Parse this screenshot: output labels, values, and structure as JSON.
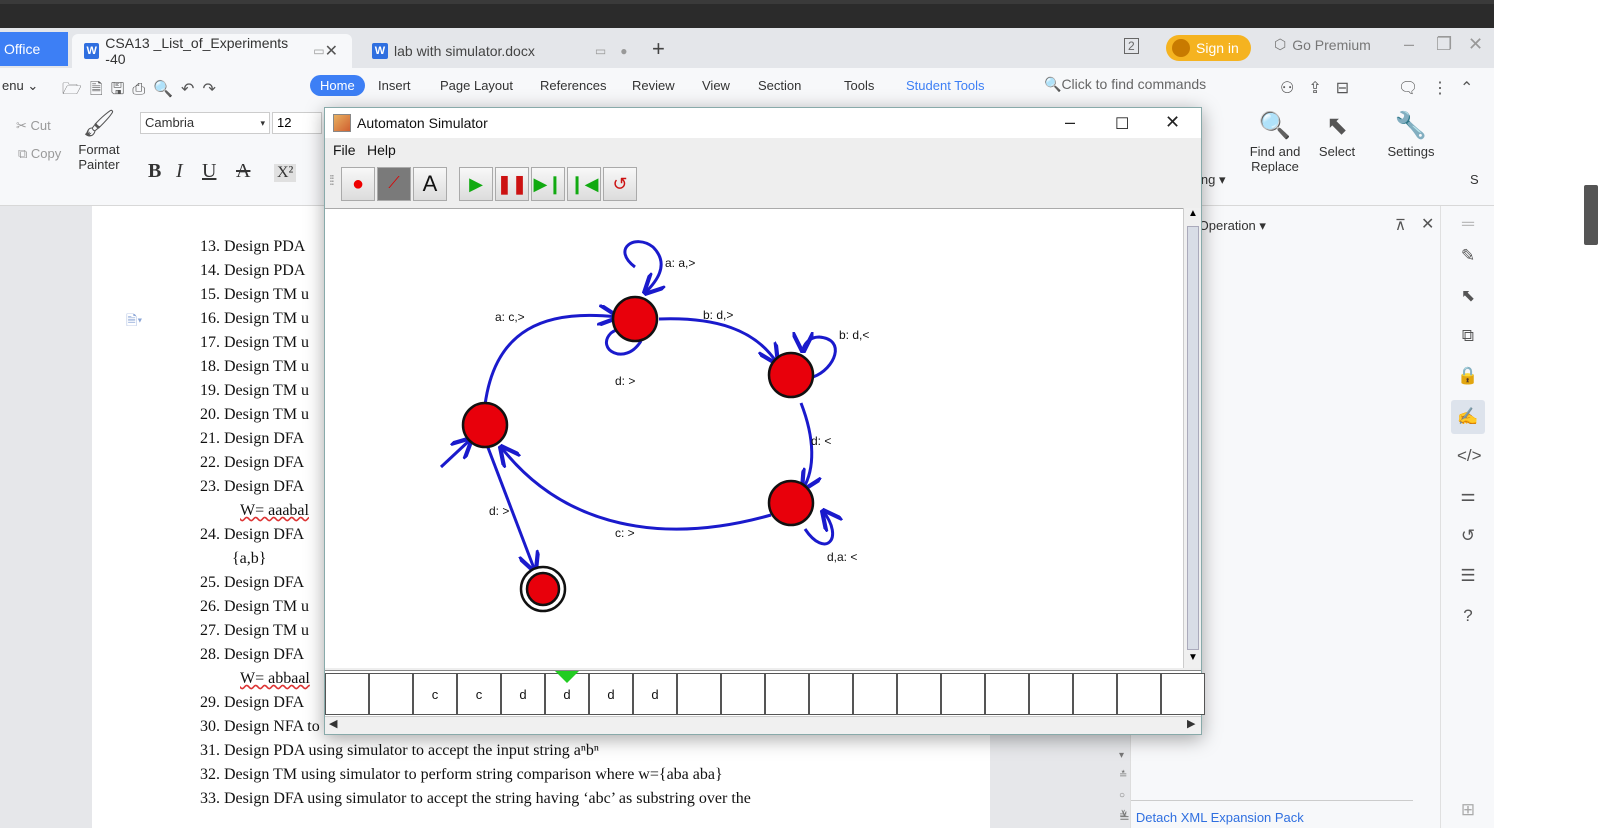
{
  "wps": {
    "tabs": {
      "office_label": "Office",
      "doc1_title": "CSA13 _List_of_Experiments -40",
      "doc2_title": "lab with simulator.docx",
      "new_tab": "+"
    },
    "topbar": {
      "window_count": "2",
      "sign_in": "Sign in",
      "go_premium": "Go Premium"
    },
    "menu": {
      "menu_label": "enu",
      "items": [
        "Home",
        "Insert",
        "Page Layout",
        "References",
        "Review",
        "View",
        "Section",
        "Tools"
      ],
      "student_tools": "Student Tools",
      "find_placeholder": "Click to find commands"
    },
    "ribbon": {
      "cut": "Cut",
      "copy": "Copy",
      "format_painter_1": "Format",
      "format_painter_2": "Painter",
      "font_name": "Cambria",
      "font_size": "12",
      "bold": "B",
      "italic": "I",
      "underline": "U",
      "superscript": "X²",
      "partial_ing": "ing",
      "find_replace_1": "Find and",
      "find_replace_2": "Replace",
      "select": "Select",
      "settings": "Settings",
      "s_partial": "S"
    },
    "sidepanel": {
      "title": "ent Operation",
      "footer": "Detach XML Expansion Pack"
    },
    "colors": {
      "accent": "#3d7ff5",
      "signin": "#f5b320"
    }
  },
  "document": {
    "lines": [
      {
        "num": "13.",
        "text": "Design PDA"
      },
      {
        "num": "14.",
        "text": "Design PDA"
      },
      {
        "num": "15.",
        "text": "Design TM u"
      },
      {
        "num": "16.",
        "text": "Design TM u"
      },
      {
        "num": "17.",
        "text": "Design TM u"
      },
      {
        "num": "18.",
        "text": "Design TM u"
      },
      {
        "num": "19.",
        "text": "Design TM u"
      },
      {
        "num": "20.",
        "text": "Design TM u"
      },
      {
        "num": "21.",
        "text": "Design DFA"
      },
      {
        "num": "22.",
        "text": "Design DFA"
      },
      {
        "num": "23.",
        "text": "Design DFA"
      },
      {
        "num": "24.",
        "text": "Design DFA"
      },
      {
        "num": "25.",
        "text": "Design DFA"
      },
      {
        "num": "26.",
        "text": "Design TM u"
      },
      {
        "num": "27.",
        "text": "Design TM u"
      },
      {
        "num": "28.",
        "text": "Design DFA"
      },
      {
        "num": "29.",
        "text": "Design DFA"
      },
      {
        "num": "30.",
        "text": "Design NFA to accept any number of a's where input={a,b}."
      },
      {
        "num": "31.",
        "text": "Design PDA using simulator to accept the input string  aⁿbⁿ"
      },
      {
        "num": "32.",
        "text": "Design TM using simulator to perform string comparison where w={aba aba}"
      },
      {
        "num": "33.",
        "text": "Design DFA using simulator to accept the string having ‘abc’ as substring over the"
      }
    ],
    "cont_23": "W= aaabal",
    "cont_24": "{a,b}",
    "cont_28": "W= abbaal"
  },
  "simulator": {
    "title": "Automaton Simulator",
    "menu": [
      "File",
      "Help"
    ],
    "transitions": {
      "t1": "a: a,>",
      "t2": "a: c,>",
      "t3": "b: d,>",
      "t4": "d: >",
      "t5": "b: d,<",
      "t6": "d: <",
      "t7": "d: >",
      "t8": "c: >",
      "t9": "d,a: <"
    },
    "tape": [
      "",
      "",
      "c",
      "c",
      "d",
      "d",
      "d",
      "d",
      "",
      "",
      "",
      "",
      "",
      "",
      "",
      "",
      "",
      "",
      "",
      ""
    ],
    "head_index": 5,
    "colors": {
      "state": "#e8000b",
      "edge": "#1a1acc",
      "head": "#22cc22"
    }
  }
}
